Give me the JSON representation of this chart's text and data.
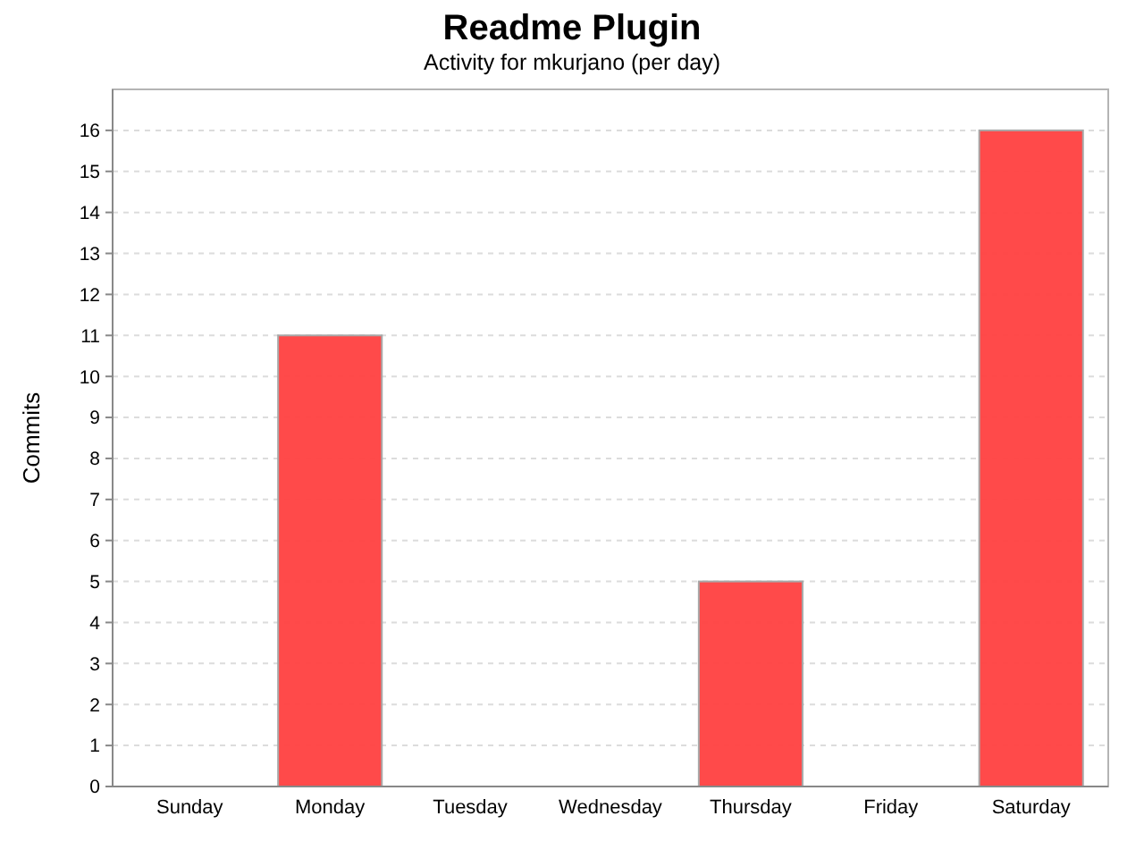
{
  "chart_data": {
    "type": "bar",
    "title": "Readme Plugin",
    "subtitle": "Activity for mkurjano (per day)",
    "ylabel": "Commits",
    "categories": [
      "Sunday",
      "Monday",
      "Tuesday",
      "Wednesday",
      "Thursday",
      "Friday",
      "Saturday"
    ],
    "values": [
      0,
      11,
      0,
      0,
      5,
      0,
      16
    ],
    "color": "#ff4040",
    "ylim": [
      0,
      17
    ],
    "yticks": [
      0,
      1,
      2,
      3,
      4,
      5,
      6,
      7,
      8,
      9,
      10,
      11,
      12,
      13,
      14,
      15,
      16
    ],
    "grid": "y"
  }
}
